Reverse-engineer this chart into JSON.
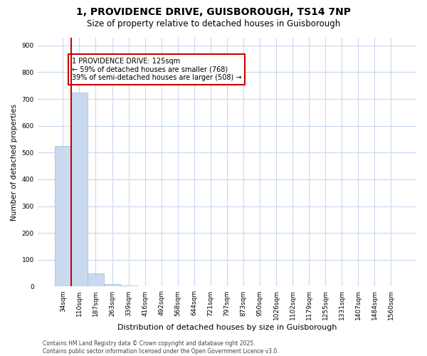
{
  "title_line1": "1, PROVIDENCE DRIVE, GUISBOROUGH, TS14 7NP",
  "title_line2": "Size of property relative to detached houses in Guisborough",
  "xlabel": "Distribution of detached houses by size in Guisborough",
  "ylabel": "Number of detached properties",
  "categories": [
    "34sqm",
    "110sqm",
    "187sqm",
    "263sqm",
    "339sqm",
    "416sqm",
    "492sqm",
    "568sqm",
    "644sqm",
    "721sqm",
    "797sqm",
    "873sqm",
    "950sqm",
    "1026sqm",
    "1102sqm",
    "1179sqm",
    "1255sqm",
    "1331sqm",
    "1407sqm",
    "1484sqm",
    "1560sqm"
  ],
  "values": [
    525,
    725,
    50,
    10,
    5,
    0,
    0,
    0,
    0,
    0,
    0,
    0,
    0,
    0,
    0,
    0,
    0,
    0,
    0,
    0,
    0
  ],
  "bar_color": "#c8d9f0",
  "bar_edge_color": "#a0b8d8",
  "property_line_color": "#cc0000",
  "property_line_x": 0.5,
  "annotation_text": "1 PROVIDENCE DRIVE: 125sqm\n← 59% of detached houses are smaller (768)\n39% of semi-detached houses are larger (508) →",
  "annotation_box_color": "#cc0000",
  "annotation_text_color": "#000000",
  "ylim": [
    0,
    930
  ],
  "yticks": [
    0,
    100,
    200,
    300,
    400,
    500,
    600,
    700,
    800,
    900
  ],
  "footer_line1": "Contains HM Land Registry data © Crown copyright and database right 2025.",
  "footer_line2": "Contains public sector information licensed under the Open Government Licence v3.0.",
  "background_color": "#ffffff",
  "grid_color": "#c8d9f0",
  "title_fontsize": 10,
  "subtitle_fontsize": 8.5
}
